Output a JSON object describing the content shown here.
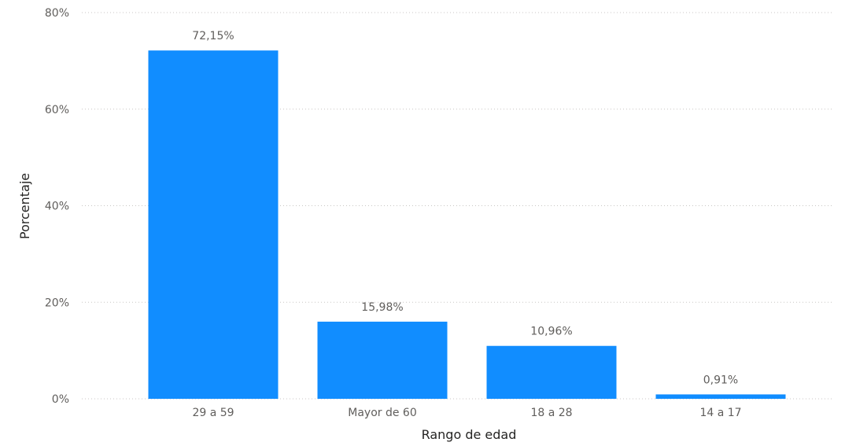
{
  "chart_data": {
    "type": "bar",
    "title": "",
    "xlabel": "Rango de edad",
    "ylabel": "Porcentaje",
    "categories": [
      "29 a 59",
      "Mayor de 60",
      "18 a 28",
      "14 a 17"
    ],
    "values": [
      72.15,
      15.98,
      10.96,
      0.91
    ],
    "value_labels": [
      "72,15%",
      "15,98%",
      "10,96%",
      "0,91%"
    ],
    "ylim": [
      0,
      80
    ],
    "yticks": [
      0,
      20,
      40,
      60,
      80
    ],
    "ytick_labels": [
      "0%",
      "20%",
      "40%",
      "60%",
      "80%"
    ],
    "grid": true,
    "bar_color": "#118dff"
  }
}
